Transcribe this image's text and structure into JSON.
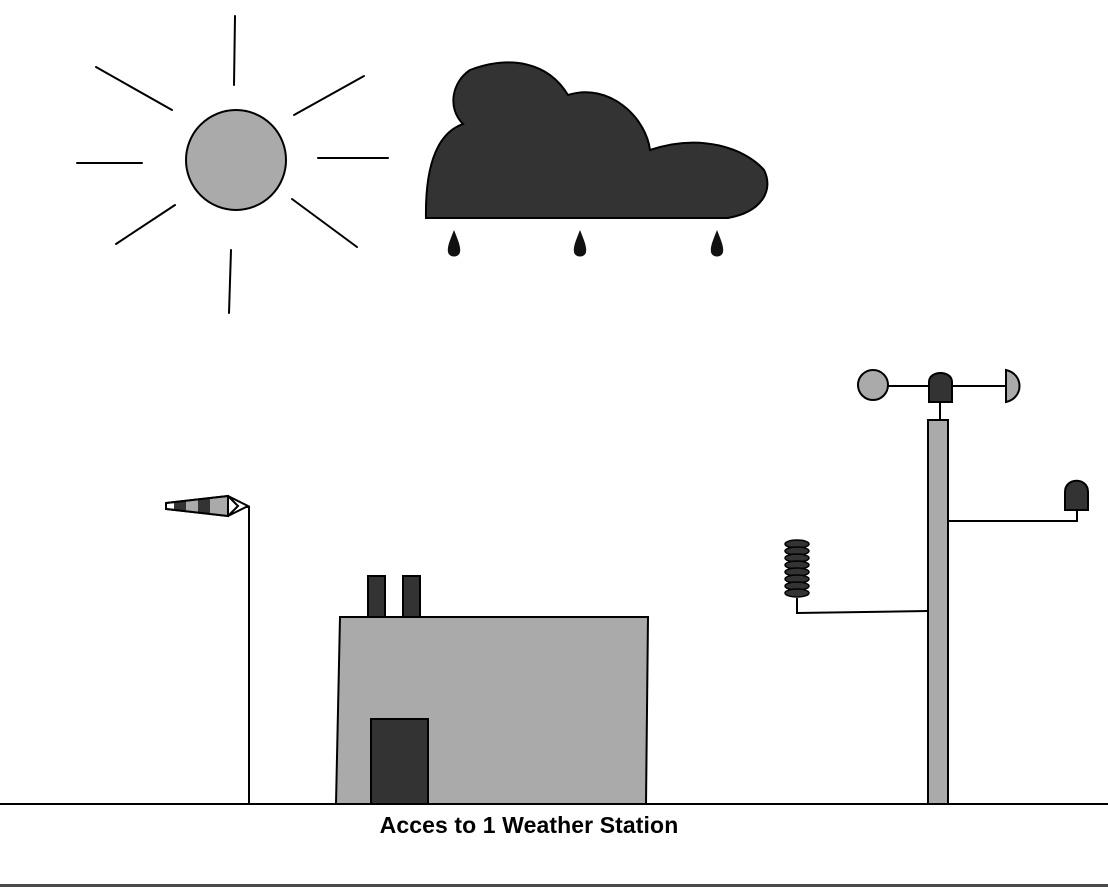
{
  "caption": "Acces to 1 Weather Station",
  "colors": {
    "background": "#ffffff",
    "light_gray": "#aaaaaa",
    "dark_gray": "#333333",
    "outline": "#000000"
  },
  "elements": {
    "sun": "sun-icon",
    "cloud": "rain-cloud-icon",
    "windsock": "windsock-icon",
    "building": "station-building",
    "mast": "instrument-mast",
    "anemometer": "anemometer-icon",
    "radiation_shield": "radiation-shield-icon",
    "rain_gauge": "rain-gauge-icon"
  }
}
